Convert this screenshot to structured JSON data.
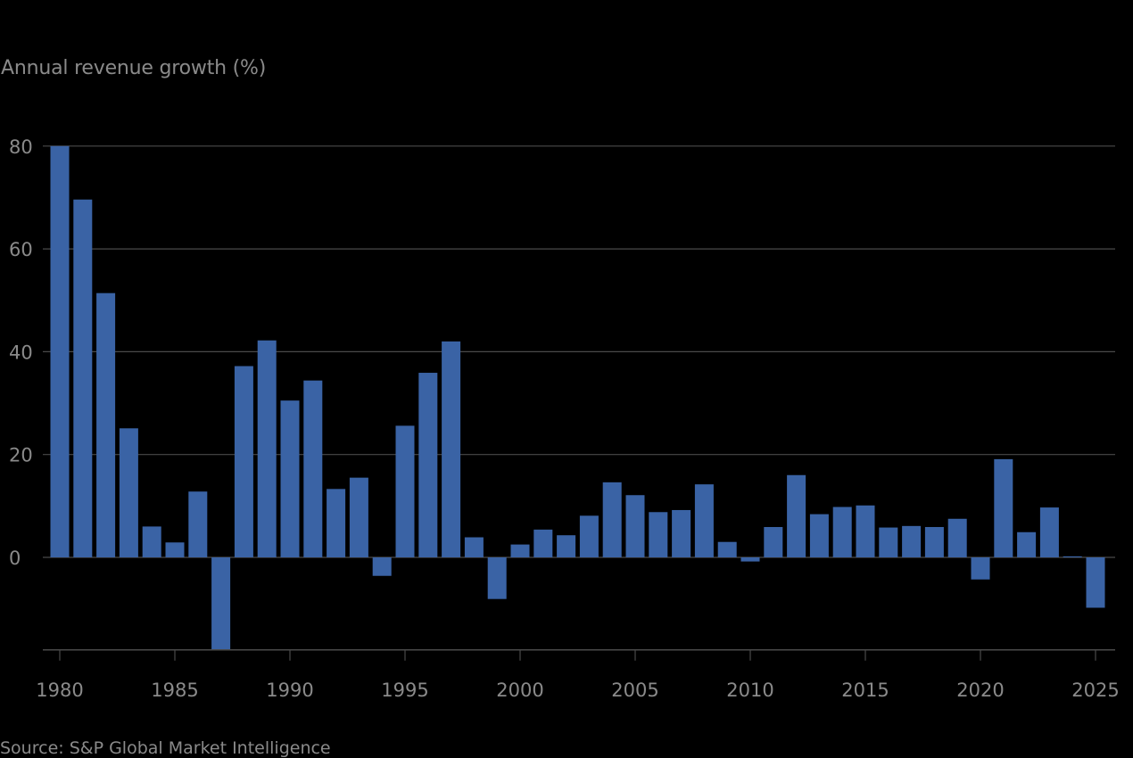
{
  "chart_data": {
    "type": "bar",
    "title": "",
    "ylabel": "Annual revenue growth (%)",
    "xlabel": "",
    "source": "Source: S&P Global Market Intelligence",
    "ylim": [
      -18,
      80
    ],
    "yticks": [
      0,
      20,
      40,
      60,
      80
    ],
    "xticks": [
      1980,
      1985,
      1990,
      1995,
      2000,
      2005,
      2010,
      2015,
      2020,
      2025
    ],
    "grid": true,
    "bar_color": "#3a63a5",
    "categories": [
      1980,
      1981,
      1982,
      1983,
      1984,
      1985,
      1986,
      1987,
      1988,
      1989,
      1990,
      1991,
      1992,
      1993,
      1994,
      1995,
      1996,
      1997,
      1998,
      1999,
      2000,
      2001,
      2002,
      2003,
      2004,
      2005,
      2006,
      2007,
      2008,
      2009,
      2010,
      2011,
      2012,
      2013,
      2014,
      2015,
      2016,
      2017,
      2018,
      2019,
      2020,
      2021,
      2022,
      2023,
      2024,
      2025
    ],
    "values": [
      80.0,
      69.6,
      51.4,
      25.1,
      6.0,
      2.9,
      12.8,
      -18.0,
      37.2,
      42.2,
      30.5,
      34.4,
      13.3,
      15.5,
      -3.6,
      25.6,
      35.9,
      42.0,
      3.9,
      -8.1,
      2.5,
      5.4,
      4.3,
      8.1,
      14.6,
      12.1,
      8.8,
      9.2,
      14.2,
      3.0,
      -0.8,
      5.9,
      16.0,
      8.4,
      9.8,
      10.1,
      5.8,
      6.1,
      5.9,
      7.5,
      -4.3,
      19.1,
      4.9,
      9.7,
      0.2,
      -9.8
    ]
  }
}
